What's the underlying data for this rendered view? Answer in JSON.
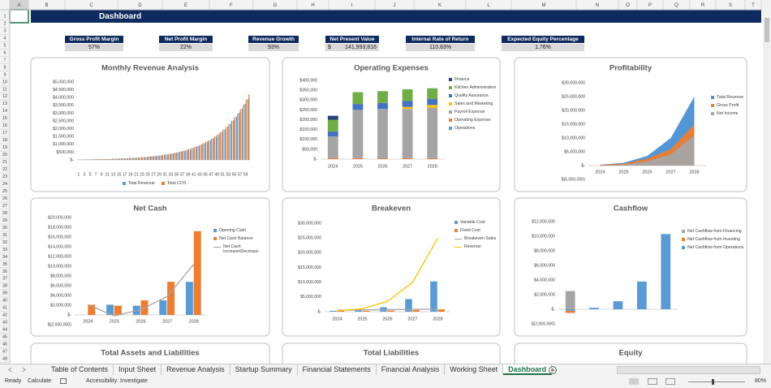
{
  "sheet": {
    "columns": [
      "A",
      "B",
      "C",
      "D",
      "E",
      "F",
      "G",
      "H",
      "I",
      "J",
      "K",
      "L",
      "M",
      "N",
      "O",
      "P",
      "Q",
      "R",
      "S",
      "T"
    ],
    "rows": [
      1,
      2,
      3,
      4,
      5,
      6,
      7,
      8,
      9,
      10,
      11,
      12,
      13,
      14,
      15,
      16,
      17,
      18,
      19,
      20,
      21,
      22,
      23,
      24,
      25,
      26,
      27,
      28,
      29,
      30,
      31,
      32,
      33,
      34,
      35,
      36,
      37,
      38,
      39,
      40,
      41,
      42,
      43,
      44,
      45,
      46,
      47,
      48
    ]
  },
  "title": "Dashboard",
  "kpis": [
    {
      "label": "Gross Profit Margin",
      "value": "57%"
    },
    {
      "label": "Net Profit Margin",
      "value": "22%"
    },
    {
      "label": "Revenue Growth",
      "value": "93%"
    },
    {
      "label": "Net Present Value",
      "currency": "$",
      "value": "141,993,816"
    },
    {
      "label": "Internal Rate of Return",
      "value": "110.83%"
    },
    {
      "label": "Expected Equity Percentage",
      "value": "1.76%"
    }
  ],
  "chart_data": [
    {
      "type": "bar",
      "title": "Monthly Revenue Analysis",
      "legend": "bottom",
      "categories": [
        1,
        null,
        3,
        null,
        5,
        null,
        7,
        null,
        9,
        null,
        11,
        null,
        13,
        null,
        15,
        null,
        17,
        null,
        19,
        null,
        21,
        null,
        23,
        null,
        25,
        null,
        27,
        null,
        29,
        null,
        31,
        null,
        33,
        null,
        35,
        null,
        37,
        null,
        39,
        null,
        41,
        null,
        43,
        null,
        45,
        null,
        47,
        null,
        49,
        null,
        51,
        null,
        53,
        null,
        55,
        null,
        57,
        null,
        59,
        null
      ],
      "series": [
        {
          "name": "Total Revenue",
          "color": "#5b9bd5",
          "values": [
            24000,
            26000,
            29000,
            32000,
            34000,
            37000,
            41000,
            45000,
            48000,
            53000,
            58000,
            62000,
            68000,
            74000,
            81000,
            88000,
            96000,
            105000,
            114000,
            125000,
            136000,
            148000,
            161000,
            176000,
            192000,
            208000,
            228000,
            248000,
            271000,
            295000,
            321000,
            350000,
            381000,
            416000,
            454000,
            494000,
            538000,
            587000,
            640000,
            698000,
            761000,
            829000,
            903000,
            985000,
            1073000,
            1170000,
            1275000,
            1389000,
            1515000,
            1651000,
            1800000,
            1961000,
            2138000,
            2331000,
            2541000,
            2770000,
            3019000,
            3290000,
            3586000,
            3909000
          ]
        },
        {
          "name": "Total COS",
          "color": "#ed7d31",
          "values": [
            26000,
            28000,
            31000,
            34000,
            37000,
            40000,
            44000,
            48000,
            52000,
            57000,
            62000,
            67000,
            73000,
            80000,
            87000,
            95000,
            103000,
            113000,
            123000,
            134000,
            146000,
            159000,
            173000,
            189000,
            206000,
            224000,
            245000,
            267000,
            291000,
            317000,
            345000,
            376000,
            410000,
            447000,
            488000,
            531000,
            579000,
            631000,
            688000,
            750000,
            818000,
            891000,
            971000,
            1059000,
            1154000,
            1258000,
            1371000,
            1494000,
            1629000,
            1775000,
            1935000,
            2109000,
            2299000,
            2506000,
            2732000,
            2978000,
            3246000,
            3538000,
            3856000,
            4203000
          ]
        }
      ],
      "ylim": [
        0,
        5000000
      ],
      "yticks": [
        {
          "value": 0,
          "label": "$-"
        },
        {
          "value": 500000,
          "label": "$500,000"
        },
        {
          "value": 1000000,
          "label": "$1,000,000"
        },
        {
          "value": 1500000,
          "label": "$1,500,000"
        },
        {
          "value": 2000000,
          "label": "$2,000,000"
        },
        {
          "value": 2500000,
          "label": "$2,500,000"
        },
        {
          "value": 3000000,
          "label": "$3,000,000"
        },
        {
          "value": 3500000,
          "label": "$3,500,000"
        },
        {
          "value": 4000000,
          "label": "$4,000,000"
        },
        {
          "value": 4500000,
          "label": "$4,500,000"
        },
        {
          "value": 5000000,
          "label": "$5,000,000"
        }
      ]
    },
    {
      "type": "bar",
      "stacked": true,
      "title": "Operating Expenses",
      "legend": "right",
      "categories": [
        2024,
        2025,
        2026,
        2027,
        2028
      ],
      "series": [
        {
          "name": "Finance",
          "color": "#264478",
          "values": [
            20000,
            0,
            0,
            0,
            0
          ]
        },
        {
          "name": "Kitchen Administration",
          "color": "#70ad47",
          "values": [
            60000,
            60000,
            60000,
            60000,
            55000
          ]
        },
        {
          "name": "Quality Assurance",
          "color": "#4472c4",
          "values": [
            25000,
            30000,
            30000,
            30000,
            30000
          ]
        },
        {
          "name": "Sales and Marketing",
          "color": "#ffc000",
          "values": [
            0,
            0,
            0,
            10000,
            15000
          ]
        },
        {
          "name": "Payroll Expense",
          "color": "#a5a5a5",
          "values": [
            110000,
            245000,
            250000,
            250000,
            255000
          ]
        },
        {
          "name": "Operating Expense",
          "color": "#ed7d31",
          "values": [
            5000,
            5000,
            5000,
            5000,
            5000
          ]
        },
        {
          "name": "Operations",
          "color": "#5b9bd5",
          "values": [
            0,
            0,
            0,
            0,
            0
          ]
        }
      ],
      "ylim": [
        0,
        400000
      ],
      "yticks": [
        {
          "value": 0,
          "label": "$-"
        },
        {
          "value": 50000,
          "label": "$50,000"
        },
        {
          "value": 100000,
          "label": "$100,000"
        },
        {
          "value": 150000,
          "label": "$150,000"
        },
        {
          "value": 200000,
          "label": "$200,000"
        },
        {
          "value": 250000,
          "label": "$250,000"
        },
        {
          "value": 300000,
          "label": "$300,000"
        },
        {
          "value": 350000,
          "label": "$350,000"
        },
        {
          "value": 400000,
          "label": "$400,000"
        }
      ]
    },
    {
      "type": "area",
      "title": "Profitability",
      "legend": "right",
      "categories": [
        2024,
        2025,
        2026,
        2027,
        2028
      ],
      "series": [
        {
          "name": "Total Revenue",
          "color": "#4a8fd3",
          "values": [
            300000,
            1000000,
            3500000,
            10000000,
            25000000
          ]
        },
        {
          "name": "Gross Profit",
          "color": "#ed7d31",
          "values": [
            200000,
            700000,
            2500000,
            6000000,
            15000000
          ]
        },
        {
          "name": "Net Income",
          "color": "#a5a5a5",
          "values": [
            -100000,
            300000,
            1500000,
            4000000,
            11000000
          ]
        }
      ],
      "ylim": [
        -5000000,
        30000000
      ],
      "yticks": [
        {
          "value": -5000000,
          "label": "$(5,000,000)"
        },
        {
          "value": 0,
          "label": "$-"
        },
        {
          "value": 5000000,
          "label": "$5,000,000"
        },
        {
          "value": 10000000,
          "label": "$10,000,000"
        },
        {
          "value": 15000000,
          "label": "$15,000,000"
        },
        {
          "value": 20000000,
          "label": "$20,000,000"
        },
        {
          "value": 25000000,
          "label": "$25,000,000"
        },
        {
          "value": 30000000,
          "label": "$30,000,000"
        }
      ]
    },
    {
      "type": "combo",
      "title": "Net Cash",
      "legend": "right",
      "categories": [
        2024,
        2025,
        2026,
        2027,
        2028
      ],
      "series": [
        {
          "name": "Opening Cash",
          "kind": "bar",
          "color": "#5b9bd5",
          "values": [
            0,
            2100000,
            1900000,
            3000000,
            6800000
          ]
        },
        {
          "name": "Net Cash Balance",
          "kind": "bar",
          "color": "#ed7d31",
          "values": [
            2100000,
            1900000,
            3000000,
            6800000,
            17200000
          ]
        },
        {
          "name": "Net Cash Increase/Decrease",
          "kind": "line",
          "color": "#a5a5a5",
          "values": [
            2100000,
            -200000,
            1100000,
            3800000,
            10400000
          ]
        }
      ],
      "ylim": [
        -2000000,
        20000000
      ],
      "yticks": [
        {
          "value": -2000000,
          "label": "$(2,000,000)"
        },
        {
          "value": 0,
          "label": "$-"
        },
        {
          "value": 2000000,
          "label": "$2,000,000"
        },
        {
          "value": 4000000,
          "label": "$4,000,000"
        },
        {
          "value": 6000000,
          "label": "$6,000,000"
        },
        {
          "value": 8000000,
          "label": "$8,000,000"
        },
        {
          "value": 10000000,
          "label": "$10,000,000"
        },
        {
          "value": 12000000,
          "label": "$12,000,000"
        },
        {
          "value": 14000000,
          "label": "$14,000,000"
        },
        {
          "value": 16000000,
          "label": "$16,000,000"
        },
        {
          "value": 18000000,
          "label": "$18,000,000"
        },
        {
          "value": 20000000,
          "label": "$20,000,000"
        }
      ]
    },
    {
      "type": "combo",
      "title": "Breakeven",
      "legend": "right",
      "categories": [
        2024,
        2025,
        2026,
        2027,
        2028
      ],
      "series": [
        {
          "name": "Variable Cost",
          "kind": "bar",
          "color": "#5b9bd5",
          "values": [
            300000,
            700000,
            1500000,
            4300000,
            10300000
          ]
        },
        {
          "name": "Fixed Cost",
          "kind": "bar",
          "color": "#ed7d31",
          "values": [
            300000,
            300000,
            400000,
            600000,
            800000
          ]
        },
        {
          "name": "Breakeven Sales",
          "kind": "line",
          "color": "#a5a5a5",
          "values": [
            500000,
            600000,
            700000,
            800000,
            900000
          ]
        },
        {
          "name": "Revenue",
          "kind": "line",
          "color": "#ffc000",
          "values": [
            300000,
            1000000,
            3500000,
            10000000,
            25000000
          ]
        }
      ],
      "ylim": [
        0,
        30000000
      ],
      "yticks": [
        {
          "value": 0,
          "label": "$-"
        },
        {
          "value": 5000000,
          "label": "$5,000,000"
        },
        {
          "value": 10000000,
          "label": "$10,000,000"
        },
        {
          "value": 15000000,
          "label": "$15,000,000"
        },
        {
          "value": 20000000,
          "label": "$20,000,000"
        },
        {
          "value": 25000000,
          "label": "$25,000,000"
        },
        {
          "value": 30000000,
          "label": "$30,000,000"
        }
      ]
    },
    {
      "type": "bar",
      "stacked": true,
      "title": "Cashflow",
      "legend": "right",
      "categories": [
        null,
        null,
        null,
        null,
        null
      ],
      "series": [
        {
          "name": "Net Cashflow from Financing",
          "color": "#a5a5a5",
          "values": [
            2500000,
            0,
            0,
            0,
            0
          ]
        },
        {
          "name": "Net Cashflow from Investing",
          "color": "#ed7d31",
          "values": [
            -300000,
            0,
            0,
            0,
            0
          ]
        },
        {
          "name": "Net Cashflow from Operations",
          "color": "#5b9bd5",
          "values": [
            -200000,
            200000,
            1100000,
            3800000,
            10300000
          ]
        }
      ],
      "ylim": [
        -2000000,
        12000000
      ],
      "yticks": [
        {
          "value": -2000000,
          "label": "$(2,000,000)"
        },
        {
          "value": 0,
          "label": "$-"
        },
        {
          "value": 2000000,
          "label": "$2,000,000"
        },
        {
          "value": 4000000,
          "label": "$4,000,000"
        },
        {
          "value": 6000000,
          "label": "$6,000,000"
        },
        {
          "value": 8000000,
          "label": "$8,000,000"
        },
        {
          "value": 10000000,
          "label": "$10,000,000"
        },
        {
          "value": 12000000,
          "label": "$12,000,000"
        }
      ]
    }
  ],
  "lower_panels": [
    "Total Assets and Liabilities",
    "Total Liabilities",
    "Equity"
  ],
  "tabs": [
    "Table of Contents",
    "Input Sheet",
    "Revenue Analysis",
    "Startup Summary",
    "Financial Statements",
    "Financial Analysis",
    "Working Sheet",
    "Dashboard"
  ],
  "active_tab": 7,
  "status": {
    "ready": "Ready",
    "calculate": "Calculate",
    "accessibility": "Accessibility: Investigate",
    "zoom": "80%"
  }
}
